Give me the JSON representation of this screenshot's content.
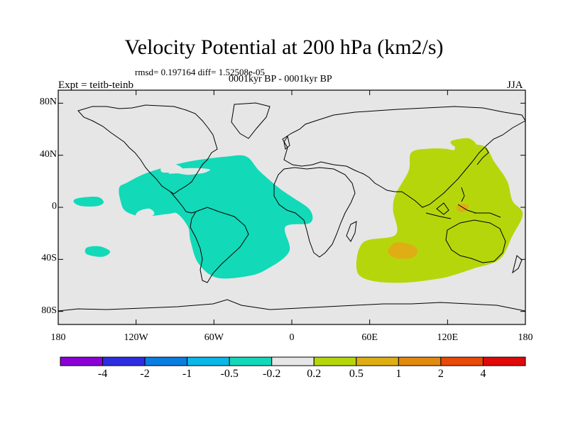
{
  "title": "Velocity Potential at 200 hPa (km2/s)",
  "stats": "rmsd= 0.197164 diff= 1.52508e-05",
  "experiment": "Expt = teitb-teinb",
  "period": "0001kyr BP - 0001kyr BP",
  "season": "JJA",
  "map": {
    "lon_range": [
      -180,
      180
    ],
    "lat_range": [
      -90,
      90
    ],
    "lat_ticks": [
      {
        "label": "80N",
        "lat": 80
      },
      {
        "label": "40N",
        "lat": 40
      },
      {
        "label": "0",
        "lat": 0
      },
      {
        "label": "40S",
        "lat": -40
      },
      {
        "label": "80S",
        "lat": -80
      }
    ],
    "lon_ticks": [
      {
        "label": "180",
        "lon": -180
      },
      {
        "label": "120W",
        "lon": -120
      },
      {
        "label": "60W",
        "lon": -60
      },
      {
        "label": "0",
        "lon": 0
      },
      {
        "label": "60E",
        "lon": 60
      },
      {
        "label": "120E",
        "lon": 120
      },
      {
        "label": "180",
        "lon": 180
      }
    ],
    "background_color": "#e6e6e6",
    "field_regions": [
      {
        "name": "negative-region-americas-atlantic",
        "interval": "-0.5 to -0.2",
        "color": "#12d9b8",
        "lonlat": [
          [
            -127,
            19
          ],
          [
            -110,
            27
          ],
          [
            -80,
            35
          ],
          [
            -50,
            39
          ],
          [
            -35,
            39
          ],
          [
            -25,
            28
          ],
          [
            -10,
            15
          ],
          [
            0,
            8
          ],
          [
            14,
            -2
          ],
          [
            14,
            -12
          ],
          [
            -5,
            -15
          ],
          [
            -2,
            -34
          ],
          [
            -20,
            -48
          ],
          [
            -35,
            -53
          ],
          [
            -58,
            -54
          ],
          [
            -72,
            -43
          ],
          [
            -78,
            -26
          ],
          [
            -80,
            -15
          ],
          [
            -88,
            -5
          ],
          [
            -95,
            -5
          ],
          [
            -115,
            -7
          ],
          [
            -128,
            -3
          ],
          [
            -132,
            5
          ],
          [
            -133,
            15
          ]
        ]
      },
      {
        "name": "negative-region-east-pacific",
        "interval": "-0.5 to -0.2",
        "color": "#12d9b8",
        "lonlat": [
          [
            -165,
            7
          ],
          [
            -150,
            8
          ],
          [
            -145,
            4
          ],
          [
            -150,
            1
          ],
          [
            -162,
            1
          ],
          [
            -168,
            4
          ]
        ]
      },
      {
        "name": "negative-region-south-pacific",
        "interval": "-0.5 to -0.2",
        "color": "#12d9b8",
        "lonlat": [
          [
            -158,
            -31
          ],
          [
            -148,
            -30
          ],
          [
            -140,
            -34
          ],
          [
            -146,
            -38
          ],
          [
            -158,
            -36
          ]
        ]
      },
      {
        "name": "positive-region-indo-pacific",
        "interval": "0.2 to 0.5",
        "color": "#b6d60c",
        "lonlat": [
          [
            92,
            42
          ],
          [
            105,
            45
          ],
          [
            118,
            45
          ],
          [
            125,
            44
          ],
          [
            128,
            48
          ],
          [
            148,
            47
          ],
          [
            156,
            35
          ],
          [
            166,
            20
          ],
          [
            170,
            5
          ],
          [
            178,
            -5
          ],
          [
            170,
            -22
          ],
          [
            160,
            -40
          ],
          [
            140,
            -47
          ],
          [
            125,
            -52
          ],
          [
            112,
            -55
          ],
          [
            85,
            -58
          ],
          [
            60,
            -56
          ],
          [
            50,
            -48
          ],
          [
            55,
            -27
          ],
          [
            80,
            -21
          ],
          [
            78,
            -2
          ],
          [
            80,
            10
          ],
          [
            90,
            28
          ]
        ]
      },
      {
        "name": "positive-region-japan-north",
        "interval": "0.2 to 0.5",
        "color": "#b6d60c",
        "lonlat": [
          [
            123,
            51
          ],
          [
            136,
            53
          ],
          [
            142,
            48
          ],
          [
            134,
            46
          ],
          [
            125,
            47
          ]
        ]
      },
      {
        "name": "positive-region-indian-ocean-core",
        "interval": "0.5 to 1",
        "color": "#dfae14",
        "lonlat": [
          [
            80,
            -27
          ],
          [
            93,
            -29
          ],
          [
            97,
            -34
          ],
          [
            92,
            -39
          ],
          [
            80,
            -39
          ],
          [
            74,
            -34
          ]
        ]
      },
      {
        "name": "positive-region-indonesia-core",
        "interval": "0.5 to 1",
        "color": "#dfae14",
        "lonlat": [
          [
            128,
            2
          ],
          [
            136,
            2
          ],
          [
            134,
            -3
          ],
          [
            128,
            -3
          ]
        ]
      }
    ],
    "land_color": "#e6e6e6",
    "holes": [
      {
        "name": "hole-gulf-of-mexico",
        "lonlat": [
          [
            -90,
            29
          ],
          [
            -82,
            30
          ],
          [
            -70,
            30
          ],
          [
            -63,
            29
          ],
          [
            -66,
            27
          ],
          [
            -70,
            26
          ],
          [
            -80,
            25
          ],
          [
            -88,
            26
          ],
          [
            -95,
            26
          ]
        ]
      },
      {
        "name": "hole-east-pacific",
        "lonlat": [
          [
            -118,
            -3
          ],
          [
            -110,
            -1
          ],
          [
            -106,
            -5
          ],
          [
            -113,
            -9
          ],
          [
            -120,
            -7
          ]
        ]
      },
      {
        "name": "hole-central-america",
        "lonlat": [
          [
            -100,
            31
          ],
          [
            -90,
            33
          ],
          [
            -84,
            29
          ],
          [
            -92,
            27
          ],
          [
            -100,
            27
          ]
        ]
      }
    ]
  },
  "colorbar": {
    "bins": [
      {
        "color": "#8a00d6"
      },
      {
        "color": "#2d2de0"
      },
      {
        "color": "#0a7de0"
      },
      {
        "color": "#0ab8e8"
      },
      {
        "color": "#12d9b8"
      },
      {
        "color": "#e6e6e6"
      },
      {
        "color": "#b6d60c"
      },
      {
        "color": "#dfae14"
      },
      {
        "color": "#e08a10"
      },
      {
        "color": "#e84a0a"
      },
      {
        "color": "#e00a0a"
      }
    ],
    "labels": [
      "-4",
      "-2",
      "-1",
      "-0.5",
      "-0.2",
      "0.2",
      "0.5",
      "1",
      "2",
      "4"
    ]
  }
}
